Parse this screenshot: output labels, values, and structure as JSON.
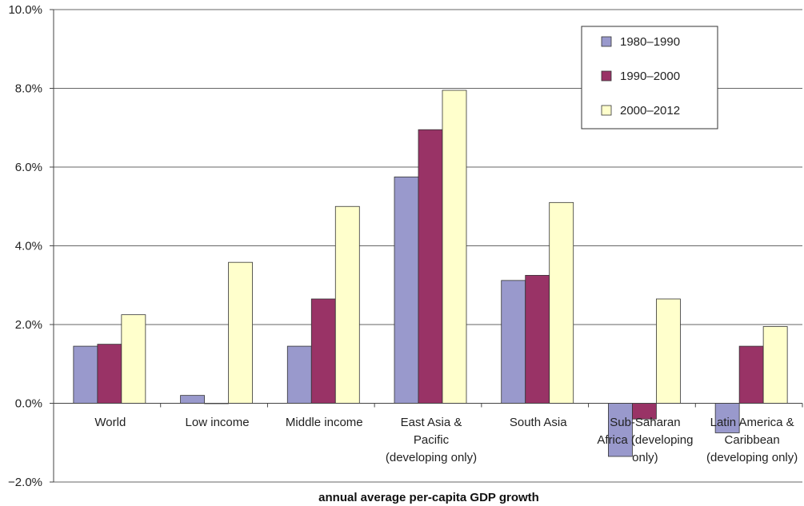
{
  "chart_data": {
    "type": "bar",
    "xlabel": "annual average per-capita GDP growth",
    "ylabel": "",
    "ylim": [
      -2.0,
      10.0
    ],
    "yticks": [
      "10.0%",
      "8.0%",
      "6.0%",
      "4.0%",
      "2.0%",
      "0.0%",
      "−2.0%"
    ],
    "ytick_values": [
      10,
      8,
      6,
      4,
      2,
      0,
      -2
    ],
    "grid": "horizontal",
    "legend_position": "top-right",
    "categories": [
      [
        "World"
      ],
      [
        "Low income"
      ],
      [
        "Middle income"
      ],
      [
        "East Asia &",
        "Pacific",
        "(developing only)"
      ],
      [
        "South Asia"
      ],
      [
        "Sub-Saharan",
        "Africa (developing",
        "only)"
      ],
      [
        "Latin America &",
        "Caribbean",
        "(developing only)"
      ]
    ],
    "series": [
      {
        "name": "1980–1990",
        "color": "#9999cc",
        "values": [
          1.45,
          0.2,
          1.45,
          5.75,
          3.12,
          -1.35,
          -0.75
        ]
      },
      {
        "name": "1990–2000",
        "color": "#993366",
        "values": [
          1.5,
          0.0,
          2.65,
          6.95,
          3.25,
          -0.4,
          1.45
        ]
      },
      {
        "name": "2000–2012",
        "color": "#ffffcc",
        "values": [
          2.25,
          3.58,
          5.0,
          7.95,
          5.1,
          2.65,
          1.95
        ]
      }
    ]
  }
}
